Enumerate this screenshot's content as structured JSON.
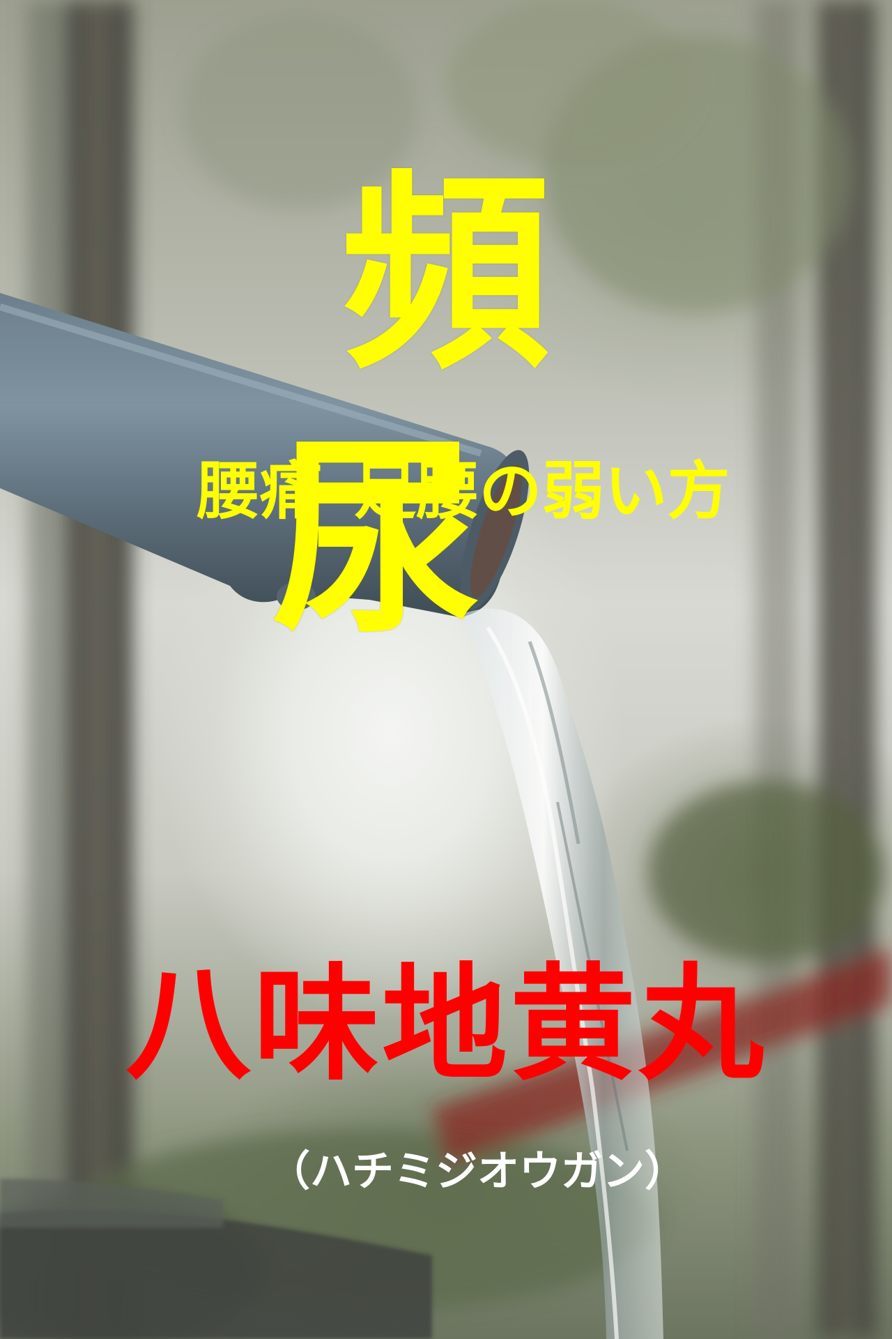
{
  "main_title": "頻　尿",
  "subtitle": "腰痛･足腰の弱い方",
  "product_name": "八味地黄丸",
  "reading": "（ハチミジオウガン）",
  "colors": {
    "main_title": "#ffff00",
    "subtitle": "#ffff00",
    "product_name": "#ff0000",
    "reading": "#ffffff"
  }
}
